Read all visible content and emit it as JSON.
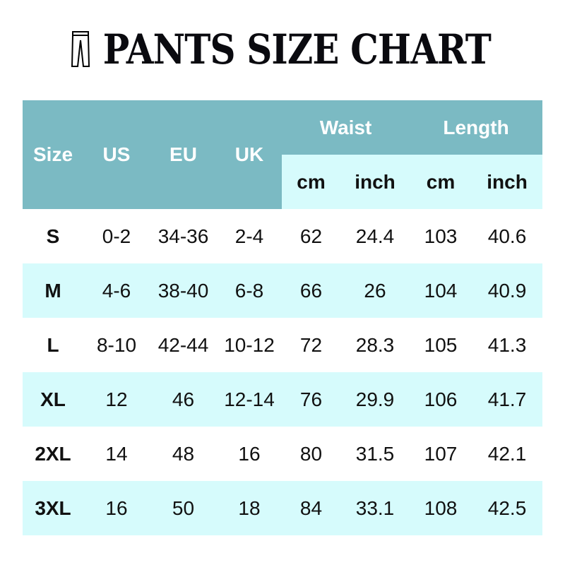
{
  "title": "PANTS SIZE CHART",
  "title_icon": "pants-icon",
  "colors": {
    "header": "#7bbac3",
    "alt_row": "#d6fbfc"
  },
  "headers": {
    "size": "Size",
    "us": "US",
    "eu": "EU",
    "uk": "UK",
    "waist": "Waist",
    "length": "Length",
    "cm": "cm",
    "inch": "inch"
  },
  "rows": [
    [
      "S",
      "0-2",
      "34-36",
      "2-4",
      "62",
      "24.4",
      "103",
      "40.6"
    ],
    [
      "M",
      "4-6",
      "38-40",
      "6-8",
      "66",
      "26",
      "104",
      "40.9"
    ],
    [
      "L",
      "8-10",
      "42-44",
      "10-12",
      "72",
      "28.3",
      "105",
      "41.3"
    ],
    [
      "XL",
      "12",
      "46",
      "12-14",
      "76",
      "29.9",
      "106",
      "41.7"
    ],
    [
      "2XL",
      "14",
      "48",
      "16",
      "80",
      "31.5",
      "107",
      "42.1"
    ],
    [
      "3XL",
      "16",
      "50",
      "18",
      "84",
      "33.1",
      "108",
      "42.5"
    ]
  ]
}
